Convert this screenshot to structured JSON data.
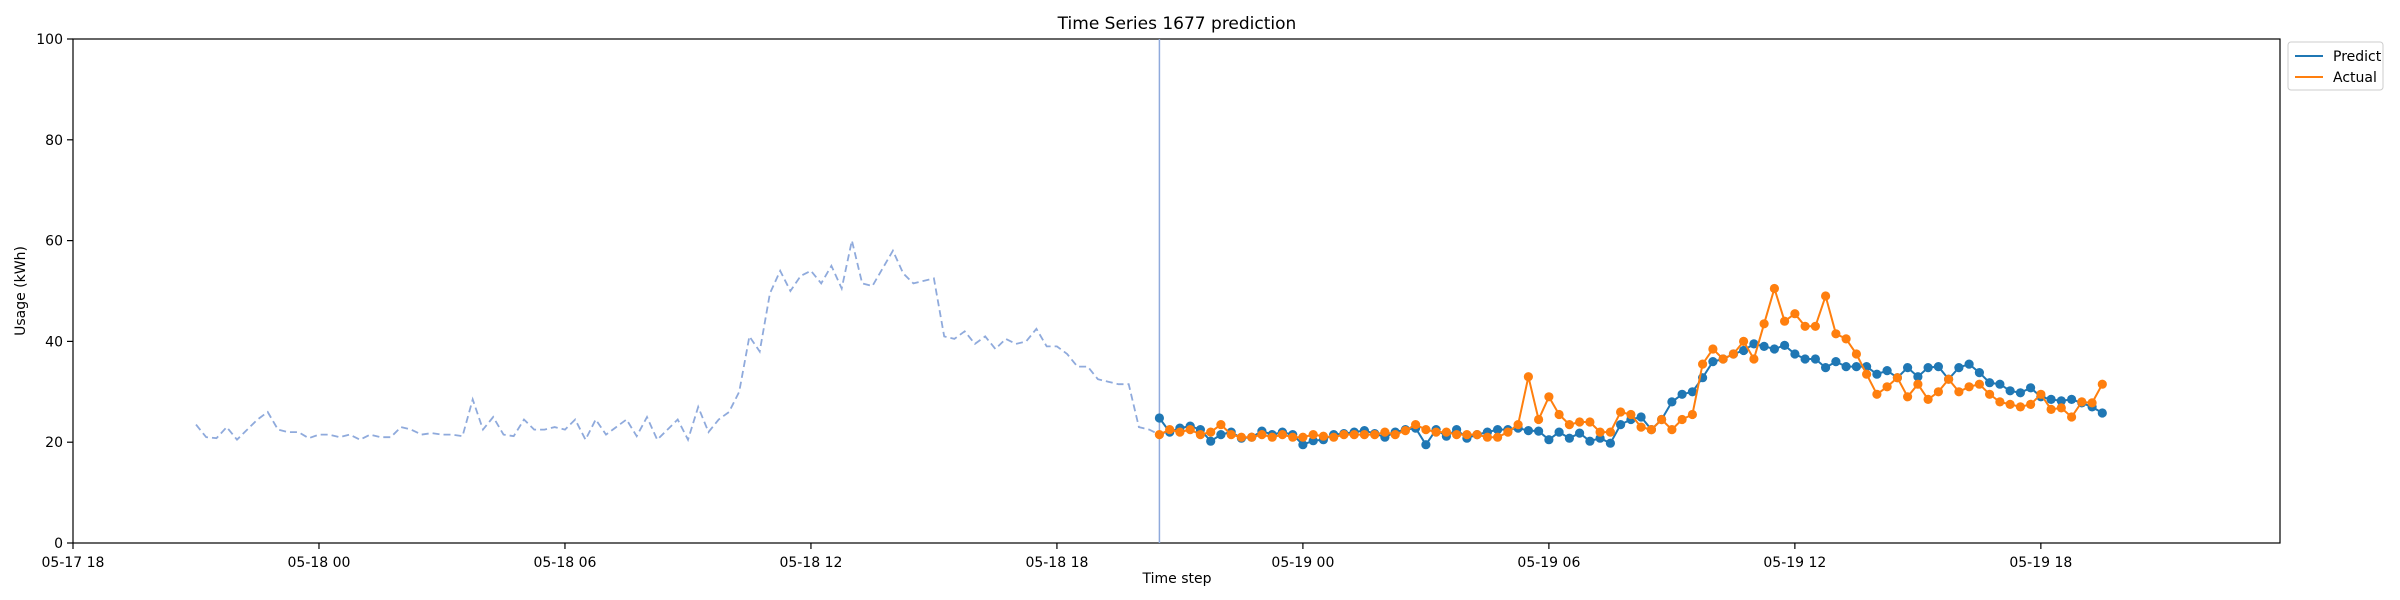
{
  "chart_data": {
    "type": "line",
    "title": "Time Series 1677 prediction",
    "xlabel": "Time step",
    "ylabel": "Usage (kWh)",
    "ylim": [
      0,
      100
    ],
    "yticks": [
      0,
      20,
      40,
      60,
      80,
      100
    ],
    "xlim": [
      "2024-05-17 18:00",
      "2024-05-19 23:50"
    ],
    "xticks": [
      {
        "t": "2024-05-17 18:00",
        "label": "05-17 18"
      },
      {
        "t": "2024-05-18 00:00",
        "label": "05-18 00"
      },
      {
        "t": "2024-05-18 06:00",
        "label": "05-18 06"
      },
      {
        "t": "2024-05-18 12:00",
        "label": "05-18 12"
      },
      {
        "t": "2024-05-18 18:00",
        "label": "05-18 18"
      },
      {
        "t": "2024-05-19 00:00",
        "label": "05-19 00"
      },
      {
        "t": "2024-05-19 06:00",
        "label": "05-19 06"
      },
      {
        "t": "2024-05-19 12:00",
        "label": "05-19 12"
      },
      {
        "t": "2024-05-19 18:00",
        "label": "05-19 18"
      }
    ],
    "forecast_start": "2024-05-18 20:30",
    "legend": {
      "position": "top-right",
      "entries": [
        "Predict",
        "Actual"
      ]
    },
    "colors": {
      "history": "#8faadc",
      "predict": "#1f77b4",
      "actual": "#ff7f0e",
      "vline": "#8faadc"
    },
    "history": {
      "start": "2024-05-17 21:00",
      "step_minutes": 15,
      "values": [
        23.5,
        21,
        20.8,
        23,
        20.5,
        22.5,
        24.5,
        26,
        22.5,
        22,
        22,
        20.8,
        21.5,
        21.5,
        21,
        21.5,
        20.5,
        21.5,
        21,
        21,
        23,
        22.5,
        21.5,
        21.8,
        21.5,
        21.5,
        21.2,
        28.5,
        22.5,
        25,
        21.5,
        21.2,
        24.5,
        22.5,
        22.5,
        23,
        22.5,
        24.5,
        20.5,
        24.5,
        21.5,
        23,
        24.5,
        21.2,
        25,
        20.5,
        22.5,
        24.5,
        20.5,
        27,
        22,
        24.5,
        26,
        30,
        41,
        38,
        49.5,
        54,
        50,
        53,
        54,
        51.5,
        55,
        50.5,
        60,
        51.5,
        51,
        54.5,
        58,
        53.5,
        51.5,
        52,
        52.5,
        41,
        40.5,
        42,
        39.5,
        41,
        38.5,
        40.5,
        39.5,
        40,
        42.5,
        39,
        39,
        37.5,
        35,
        35,
        32.5,
        32,
        31.5,
        31.5,
        23,
        22.5,
        21.5,
        22.2
      ]
    },
    "series": [
      {
        "name": "Predict",
        "start": "2024-05-18 20:30",
        "step_minutes": 15,
        "values": [
          24.8,
          22,
          22.8,
          23.2,
          22.5,
          20.2,
          21.5,
          22,
          20.8,
          21,
          22.2,
          21.5,
          22,
          21.5,
          19.5,
          20.3,
          20.5,
          21.5,
          21.7,
          22,
          22.3,
          21.7,
          21,
          22,
          22.5,
          22.8,
          19.5,
          22.5,
          21.2,
          22.5,
          20.8,
          21.5,
          22,
          22.5,
          22.5,
          22.8,
          22.3,
          22.2,
          20.5,
          22,
          20.8,
          21.8,
          20.2,
          20.8,
          19.8,
          23.5,
          24.5,
          25,
          22.5,
          24.5,
          28,
          29.5,
          30,
          32.8,
          36,
          36.5,
          37.5,
          38.2,
          39.5,
          39,
          38.5,
          39.2,
          37.5,
          36.5,
          36.5,
          34.8,
          36,
          35,
          35,
          35,
          33.5,
          34.2,
          32.8,
          34.8,
          33,
          34.8,
          35,
          32.5,
          34.8,
          35.5,
          33.8,
          31.8,
          31.5,
          30.2,
          29.8,
          30.8,
          29,
          28.5,
          28.2,
          28.5,
          27.8,
          27,
          25.8
        ]
      },
      {
        "name": "Actual",
        "start": "2024-05-18 20:30",
        "step_minutes": 15,
        "values": [
          21.5,
          22.5,
          22,
          22.5,
          21.5,
          22,
          23.5,
          21.5,
          21,
          21,
          21.5,
          21,
          21.5,
          21,
          21,
          21.5,
          21.2,
          21,
          21.5,
          21.5,
          21.5,
          21.5,
          22,
          21.5,
          22.3,
          23.5,
          22.5,
          22,
          22,
          21.5,
          21.5,
          21.5,
          21,
          21,
          22,
          23.5,
          33,
          24.5,
          29,
          25.5,
          23.5,
          24,
          24,
          22,
          22,
          26,
          25.5,
          23,
          22.5,
          24.5,
          22.5,
          24.5,
          25.5,
          35.5,
          38.5,
          36.5,
          37.5,
          40,
          36.5,
          43.5,
          50.5,
          44,
          45.5,
          43,
          43,
          49,
          41.5,
          40.5,
          37.5,
          33.5,
          29.5,
          31,
          32.8,
          29,
          31.5,
          28.5,
          30,
          32.5,
          30,
          31,
          31.5,
          29.5,
          28,
          27.5,
          27,
          27.5,
          29.5,
          26.5,
          26.8,
          25,
          28,
          27.8,
          31.5
        ]
      }
    ]
  }
}
